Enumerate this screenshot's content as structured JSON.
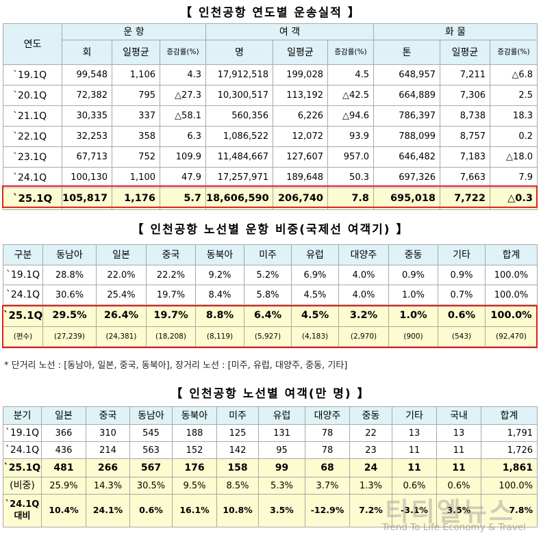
{
  "t1": {
    "title": "【 인천공항 연도별 운송실적 】",
    "h_year": "연도",
    "g_ops": "운 항",
    "g_pax": "여 객",
    "g_cargo": "화 물",
    "s": [
      "회",
      "일평균",
      "증감률(%)",
      "명",
      "일평균",
      "증감률(%)",
      "톤",
      "일평균",
      "증감률(%)"
    ],
    "rows": [
      [
        "`19.1Q",
        "99,548",
        "1,106",
        "4.3",
        "17,912,518",
        "199,028",
        "4.5",
        "648,957",
        "7,211",
        "△6.8"
      ],
      [
        "`20.1Q",
        "72,382",
        "795",
        "△27.3",
        "10,300,517",
        "113,192",
        "△42.5",
        "664,889",
        "7,306",
        "2.5"
      ],
      [
        "`21.1Q",
        "30,335",
        "337",
        "△58.1",
        "560,356",
        "6,226",
        "△94.6",
        "786,397",
        "8,738",
        "18.3"
      ],
      [
        "`22.1Q",
        "32,253",
        "358",
        "6.3",
        "1,086,522",
        "12,072",
        "93.9",
        "788,099",
        "8,757",
        "0.2"
      ],
      [
        "`23.1Q",
        "67,713",
        "752",
        "109.9",
        "11,484,667",
        "127,607",
        "957.0",
        "646,482",
        "7,183",
        "△18.0"
      ],
      [
        "`24.1Q",
        "100,130",
        "1,100",
        "47.9",
        "17,257,971",
        "189,648",
        "50.3",
        "697,326",
        "7,663",
        "7.9"
      ],
      [
        "`25.1Q",
        "105,817",
        "1,176",
        "5.7",
        "18,606,590",
        "206,740",
        "7.8",
        "695,018",
        "7,722",
        "△0.3"
      ]
    ]
  },
  "t2": {
    "title": "【 인천공항 노선별 운항 비중(국제선 여객기) 】",
    "headers": [
      "구분",
      "동남아",
      "일본",
      "중국",
      "동북아",
      "미주",
      "유럽",
      "대양주",
      "중동",
      "기타",
      "합계"
    ],
    "rows": [
      [
        "`19.1Q",
        "28.8%",
        "22.0%",
        "22.2%",
        "9.2%",
        "5.2%",
        "6.9%",
        "4.0%",
        "0.9%",
        "0.9%",
        "100.0%"
      ],
      [
        "`24.1Q",
        "30.6%",
        "25.4%",
        "19.7%",
        "8.4%",
        "5.8%",
        "4.5%",
        "4.0%",
        "1.0%",
        "0.7%",
        "100.0%"
      ],
      [
        "`25.1Q",
        "29.5%",
        "26.4%",
        "19.7%",
        "8.8%",
        "6.4%",
        "4.5%",
        "3.2%",
        "1.0%",
        "0.6%",
        "100.0%"
      ],
      [
        "(편수)",
        "(27,239)",
        "(24,381)",
        "(18,208)",
        "(8,119)",
        "(5,927)",
        "(4,183)",
        "(2,970)",
        "(900)",
        "(543)",
        "(92,470)"
      ]
    ]
  },
  "note": "* 단거리 노선 : [동남아, 일본, 중국, 동북아], 장거리 노선 : [미주, 유럽, 대양주, 중동, 기타]",
  "t3": {
    "title": "【 인천공항 노선별 여객(만 명) 】",
    "headers": [
      "분기",
      "일본",
      "중국",
      "동남아",
      "동북아",
      "미주",
      "유럽",
      "대양주",
      "중동",
      "기타",
      "국내",
      "합계"
    ],
    "rows": [
      [
        "`19.1Q",
        "366",
        "310",
        "545",
        "188",
        "125",
        "131",
        "78",
        "22",
        "13",
        "13",
        "1,791"
      ],
      [
        "`24.1Q",
        "436",
        "214",
        "563",
        "152",
        "142",
        "95",
        "78",
        "23",
        "11",
        "11",
        "1,726"
      ],
      [
        "`25.1Q",
        "481",
        "266",
        "567",
        "176",
        "158",
        "99",
        "68",
        "24",
        "11",
        "11",
        "1,861"
      ],
      [
        "(비중)",
        "25.9%",
        "14.3%",
        "30.5%",
        "9.5%",
        "8.5%",
        "5.3%",
        "3.7%",
        "1.3%",
        "0.6%",
        "0.6%",
        "100.0%"
      ],
      [
        "`24.1Q 대비",
        "10.4%",
        "24.1%",
        "0.6%",
        "16.1%",
        "10.8%",
        "3.5%",
        "-12.9%",
        "7.2%",
        "-3.1%",
        "3.5%",
        "7.8%"
      ]
    ]
  },
  "watermark": {
    "name": "티티엘뉴스",
    "slogan": "Trend To Life Economy & Travel"
  }
}
